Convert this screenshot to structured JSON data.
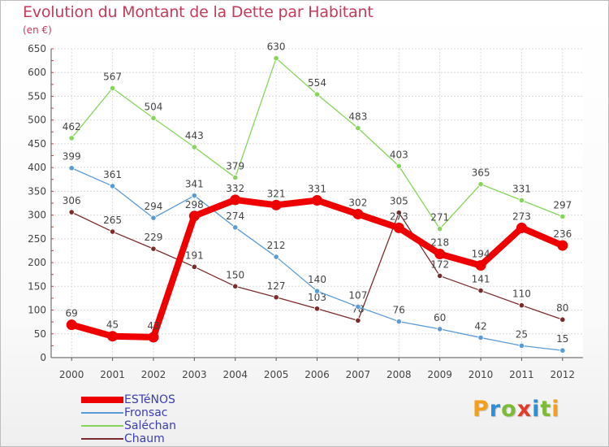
{
  "title": "Evolution du Montant de la Dette par Habitant",
  "subtitle": "(en €)",
  "logo": {
    "letters": [
      "P",
      "r",
      "o",
      "x",
      "i",
      "t",
      "i"
    ],
    "colors": [
      "#f2a01c",
      "#2d8fd5",
      "#7dbb34",
      "#e03c2c",
      "#2d8fd5",
      "#7dbb34",
      "#f2a01c"
    ]
  },
  "chart_data": {
    "type": "line",
    "title": "Evolution du Montant de la Dette par Habitant",
    "subtitle": "(en €)",
    "xlabel": "",
    "ylabel": "",
    "ylim": [
      0,
      650
    ],
    "yticks": [
      0,
      50,
      100,
      150,
      200,
      250,
      300,
      350,
      400,
      450,
      500,
      550,
      600,
      650
    ],
    "grid": true,
    "legend": "bottom-left",
    "x": [
      "2000",
      "2001",
      "2002",
      "2003",
      "2004",
      "2005",
      "2006",
      "2007",
      "2008",
      "2009",
      "2010",
      "2011",
      "2012"
    ],
    "series": [
      {
        "name": "Chaum",
        "color": "#7a2b2b",
        "values": [
          306,
          265,
          229,
          191,
          150,
          127,
          103,
          78,
          305,
          172,
          141,
          110,
          80
        ]
      },
      {
        "name": "Saléchan",
        "color": "#86d45a",
        "values": [
          462,
          567,
          504,
          443,
          379,
          630,
          554,
          483,
          403,
          271,
          365,
          331,
          297
        ]
      },
      {
        "name": "Fronsac",
        "color": "#5b9bd5",
        "values": [
          399,
          361,
          294,
          341,
          274,
          212,
          140,
          107,
          76,
          60,
          42,
          25,
          15
        ]
      },
      {
        "name": "ESTéNOS",
        "color": "#ee0000",
        "values": [
          69,
          45,
          43,
          298,
          332,
          321,
          331,
          302,
          273,
          218,
          194,
          273,
          236
        ]
      }
    ],
    "legend_order": [
      "ESTéNOS",
      "Fronsac",
      "Saléchan",
      "Chaum"
    ]
  }
}
